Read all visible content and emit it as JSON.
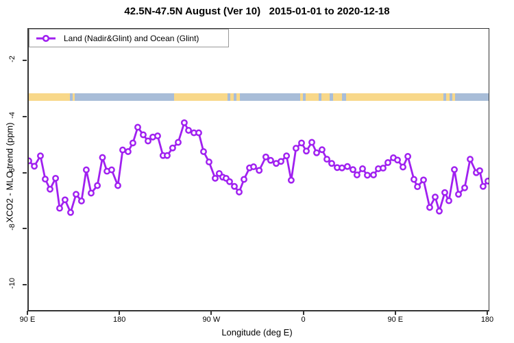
{
  "chart_data": {
    "type": "line",
    "title": "42.5N-47.5N August (Ver 10)   2015-01-01 to 2020-12-18",
    "xlabel": "Longitude (deg E)",
    "ylabel": "XCO2 - MLO trend (ppm)",
    "grid": false,
    "legend_position": "top-left",
    "ylim": [
      -10.9,
      -0.85
    ],
    "x_axis": {
      "range_lon": [
        90,
        540
      ],
      "note": "longitude axis wraps eastward from 90E around the globe to 180",
      "ticks": [
        {
          "label": "90 E",
          "lon": 90
        },
        {
          "label": "180",
          "lon": 180
        },
        {
          "label": "90 W",
          "lon": 270
        },
        {
          "label": "0",
          "lon": 360
        },
        {
          "label": "90 E",
          "lon": 450
        },
        {
          "label": "180",
          "lon": 540
        }
      ]
    },
    "y_axis": {
      "ticks": [
        {
          "label": "-2",
          "value": -2
        },
        {
          "label": "-4",
          "value": -4
        },
        {
          "label": "-6",
          "value": -6
        },
        {
          "label": "-8",
          "value": -8
        },
        {
          "label": "-10",
          "value": -10
        }
      ]
    },
    "series": [
      {
        "name": "Land (Nadir&Glint) and Ocean (Glint)",
        "color": "#A020F0",
        "marker": "open-circle",
        "points": [
          [
            90.0,
            -5.56
          ],
          [
            95.4,
            -5.75
          ],
          [
            101.4,
            -5.38
          ],
          [
            106.1,
            -6.21
          ],
          [
            110.8,
            -6.57
          ],
          [
            116.2,
            -6.18
          ],
          [
            120.2,
            -7.25
          ],
          [
            125.5,
            -6.95
          ],
          [
            130.9,
            -7.4
          ],
          [
            136.3,
            -6.75
          ],
          [
            141.6,
            -6.99
          ],
          [
            146.3,
            -5.88
          ],
          [
            151.0,
            -6.71
          ],
          [
            157.1,
            -6.44
          ],
          [
            162.1,
            -5.44
          ],
          [
            166.5,
            -5.93
          ],
          [
            171.1,
            -5.88
          ],
          [
            177.2,
            -6.44
          ],
          [
            181.9,
            -5.17
          ],
          [
            187.2,
            -5.23
          ],
          [
            191.9,
            -4.92
          ],
          [
            196.6,
            -4.36
          ],
          [
            202.0,
            -4.63
          ],
          [
            206.7,
            -4.85
          ],
          [
            211.4,
            -4.71
          ],
          [
            216.1,
            -4.67
          ],
          [
            221.4,
            -5.37
          ],
          [
            225.5,
            -5.37
          ],
          [
            230.8,
            -5.1
          ],
          [
            236.2,
            -4.9
          ],
          [
            242.2,
            -4.2
          ],
          [
            246.3,
            -4.47
          ],
          [
            251.6,
            -4.56
          ],
          [
            256.3,
            -4.56
          ],
          [
            261.0,
            -5.23
          ],
          [
            266.4,
            -5.6
          ],
          [
            272.4,
            -6.18
          ],
          [
            276.4,
            -6.01
          ],
          [
            279.8,
            -6.14
          ],
          [
            283.1,
            -6.18
          ],
          [
            286.5,
            -6.3
          ],
          [
            291.2,
            -6.47
          ],
          [
            295.9,
            -6.67
          ],
          [
            300.6,
            -6.22
          ],
          [
            306.0,
            -5.81
          ],
          [
            310.0,
            -5.77
          ],
          [
            315.5,
            -5.9
          ],
          [
            322.0,
            -5.42
          ],
          [
            326.7,
            -5.54
          ],
          [
            332.1,
            -5.65
          ],
          [
            336.8,
            -5.58
          ],
          [
            342.2,
            -5.38
          ],
          [
            346.8,
            -6.25
          ],
          [
            351.5,
            -5.11
          ],
          [
            356.9,
            -4.92
          ],
          [
            361.6,
            -5.21
          ],
          [
            367.0,
            -4.9
          ],
          [
            371.7,
            -5.27
          ],
          [
            377.0,
            -5.16
          ],
          [
            381.7,
            -5.5
          ],
          [
            386.4,
            -5.65
          ],
          [
            391.8,
            -5.8
          ],
          [
            396.5,
            -5.81
          ],
          [
            401.8,
            -5.76
          ],
          [
            407.2,
            -5.87
          ],
          [
            411.2,
            -6.06
          ],
          [
            416.6,
            -5.84
          ],
          [
            421.3,
            -6.07
          ],
          [
            427.3,
            -6.06
          ],
          [
            432.0,
            -5.84
          ],
          [
            436.7,
            -5.82
          ],
          [
            441.4,
            -5.62
          ],
          [
            446.8,
            -5.45
          ],
          [
            450.8,
            -5.53
          ],
          [
            456.2,
            -5.78
          ],
          [
            460.9,
            -5.4
          ],
          [
            466.9,
            -6.22
          ],
          [
            470.3,
            -6.48
          ],
          [
            476.3,
            -6.24
          ],
          [
            482.3,
            -7.22
          ],
          [
            487.7,
            -6.85
          ],
          [
            491.7,
            -7.35
          ],
          [
            497.1,
            -6.69
          ],
          [
            501.1,
            -6.98
          ],
          [
            506.5,
            -5.87
          ],
          [
            510.5,
            -6.75
          ],
          [
            516.5,
            -6.52
          ],
          [
            521.9,
            -5.5
          ],
          [
            527.9,
            -5.98
          ],
          [
            531.3,
            -5.91
          ],
          [
            534.6,
            -6.47
          ],
          [
            539.3,
            -6.28
          ]
        ]
      }
    ],
    "surface_strip": {
      "description": "horizontal land/ocean map band drawn across the plot near y = -3.3",
      "land_color": "#F8D88A",
      "ocean_color": "#A8BDD8",
      "segments": [
        [
          0.0,
          0.0894,
          "land"
        ],
        [
          0.0894,
          0.0946,
          "ocean"
        ],
        [
          0.0946,
          0.0999,
          "land"
        ],
        [
          0.0999,
          0.316,
          "ocean"
        ],
        [
          0.316,
          0.4322,
          "land"
        ],
        [
          0.4322,
          0.4382,
          "ocean"
        ],
        [
          0.4382,
          0.4456,
          "land"
        ],
        [
          0.4456,
          0.4516,
          "ocean"
        ],
        [
          0.4516,
          0.459,
          "land"
        ],
        [
          0.459,
          0.5902,
          "ocean"
        ],
        [
          0.5902,
          0.5961,
          "land"
        ],
        [
          0.5961,
          0.6021,
          "ocean"
        ],
        [
          0.6021,
          0.6304,
          "land"
        ],
        [
          0.6304,
          0.6364,
          "ocean"
        ],
        [
          0.6364,
          0.6543,
          "land"
        ],
        [
          0.6543,
          0.6617,
          "ocean"
        ],
        [
          0.6617,
          0.6811,
          "land"
        ],
        [
          0.6811,
          0.69,
          "ocean"
        ],
        [
          0.69,
          0.9016,
          "land"
        ],
        [
          0.9016,
          0.9076,
          "ocean"
        ],
        [
          0.9076,
          0.915,
          "land"
        ],
        [
          0.915,
          0.921,
          "ocean"
        ],
        [
          0.921,
          0.927,
          "land"
        ],
        [
          0.927,
          1.0,
          "ocean"
        ]
      ]
    }
  }
}
